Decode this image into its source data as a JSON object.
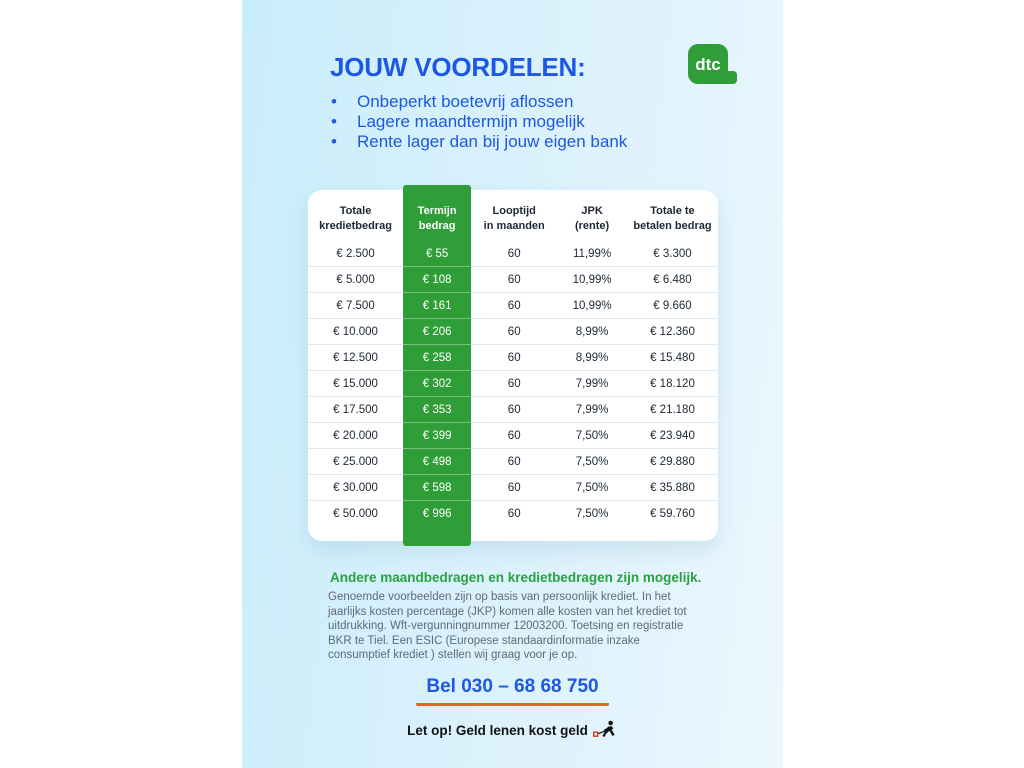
{
  "header": {
    "title": "JOUW VOORDELEN:",
    "logo_text": "dtc"
  },
  "benefits": [
    "Onbeperkt boetevrij aflossen",
    "Lagere maandtermijn mogelijk",
    "Rente lager dan bij jouw eigen bank"
  ],
  "table": {
    "headers": [
      {
        "line1": "Totale",
        "line2": "kredietbedrag"
      },
      {
        "line1": "Termijn",
        "line2": "bedrag"
      },
      {
        "line1": "Looptijd",
        "line2": "in maanden"
      },
      {
        "line1": "JPK",
        "line2": "(rente)"
      },
      {
        "line1": "Totale te",
        "line2": "betalen bedrag"
      }
    ],
    "rows": [
      [
        "€ 2.500",
        "€ 55",
        "60",
        "11,99%",
        "€ 3.300"
      ],
      [
        "€ 5.000",
        "€ 108",
        "60",
        "10,99%",
        "€ 6.480"
      ],
      [
        "€ 7.500",
        "€ 161",
        "60",
        "10,99%",
        "€ 9.660"
      ],
      [
        "€ 10.000",
        "€ 206",
        "60",
        "8,99%",
        "€ 12.360"
      ],
      [
        "€ 12.500",
        "€ 258",
        "60",
        "8,99%",
        "€ 15.480"
      ],
      [
        "€ 15.000",
        "€ 302",
        "60",
        "7,99%",
        "€ 18.120"
      ],
      [
        "€ 17.500",
        "€ 353",
        "60",
        "7,99%",
        "€ 21.180"
      ],
      [
        "€ 20.000",
        "€ 399",
        "60",
        "7,50%",
        "€ 23.940"
      ],
      [
        "€ 25.000",
        "€ 498",
        "60",
        "7,50%",
        "€ 29.880"
      ],
      [
        "€ 30.000",
        "€ 598",
        "60",
        "7,50%",
        "€ 35.880"
      ],
      [
        "€ 50.000",
        "€ 996",
        "60",
        "7,50%",
        "€ 59.760"
      ]
    ]
  },
  "footer": {
    "highlight": "Andere maandbedragen en kredietbedragen zijn mogelijk.",
    "disclaimer": "Genoemde voorbeelden zijn op basis van persoonlijk krediet. In het jaarlijks kosten percentage (JKP) komen alle kosten van het krediet tot uitdrukking. Wft-vergunningnummer 12003200. Toetsing en registratie BKR te Tiel. Een ESIC (Europese standaardinformatie inzake consumptief krediet ) stellen wij graag voor je op.",
    "phone": "Bel 030 – 68 68 750",
    "warning": "Let op! Geld lenen kost geld"
  },
  "colors": {
    "accent_blue": "#1d57e5",
    "accent_green": "#2f9e38",
    "highlight_green": "#27a33f",
    "underline_orange": "#e8632b",
    "panel_blue_left": "#c8edfa",
    "panel_blue_right": "#ebf7fe"
  }
}
